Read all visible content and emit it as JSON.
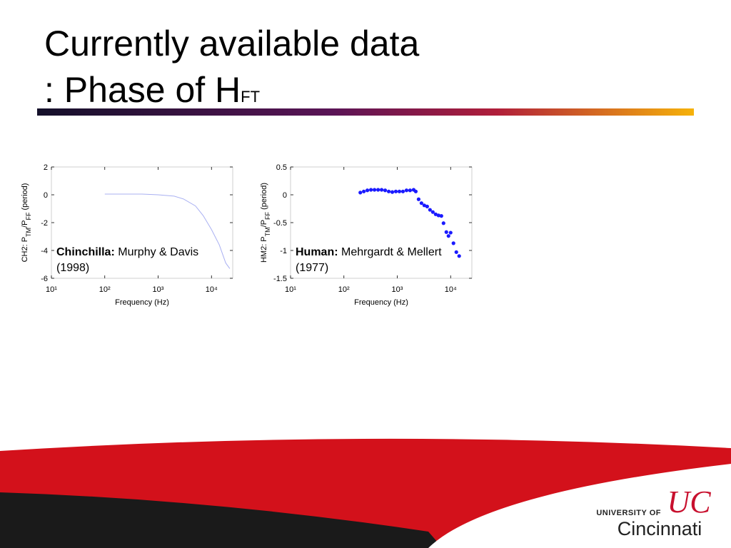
{
  "slide": {
    "title_line1": "Currently available data",
    "title_line2": ": Phase of H",
    "title_subscript": "FT"
  },
  "chart_data": [
    {
      "type": "line",
      "xlabel": "Frequency (Hz)",
      "ylabel": [
        "CH2: P",
        "TM",
        "/P",
        "FF",
        " (period)"
      ],
      "annotation_bold": "Chinchilla:",
      "annotation": "Murphy & Davis (1998)",
      "xscale": "log",
      "xlim": [
        10,
        25000
      ],
      "xticks": [
        {
          "value": 10,
          "label": "10¹"
        },
        {
          "value": 100,
          "label": "10²"
        },
        {
          "value": 1000,
          "label": "10³"
        },
        {
          "value": 10000,
          "label": "10⁴"
        }
      ],
      "ylim": [
        -6,
        2
      ],
      "yticks": [
        -6,
        -4,
        -2,
        0,
        2
      ],
      "series": [
        {
          "color": "#a9b0f2",
          "x": [
            100,
            200,
            500,
            1000,
            2000,
            3000,
            5000,
            7000,
            10000,
            14000,
            18500,
            22000
          ],
          "values": [
            0.05,
            0.05,
            0.05,
            0.0,
            -0.1,
            -0.3,
            -0.8,
            -1.5,
            -2.5,
            -3.6,
            -4.9,
            -5.3
          ]
        }
      ]
    },
    {
      "type": "scatter",
      "xlabel": "Frequency (Hz)",
      "ylabel": [
        "HM2: P",
        "TM",
        "/P",
        "FF",
        " (period)"
      ],
      "annotation_bold": "Human:",
      "annotation": "Mehrgardt & Mellert (1977)",
      "xscale": "log",
      "xlim": [
        10,
        25000
      ],
      "xticks": [
        {
          "value": 10,
          "label": "10¹"
        },
        {
          "value": 100,
          "label": "10²"
        },
        {
          "value": 1000,
          "label": "10³"
        },
        {
          "value": 10000,
          "label": "10⁴"
        }
      ],
      "ylim": [
        -1.5,
        0.5
      ],
      "yticks": [
        -1.5,
        -1,
        -0.5,
        0,
        0.5
      ],
      "series": [
        {
          "color": "#1a1aff",
          "x": [
            203,
            236,
            275,
            321,
            374,
            437,
            509,
            593,
            692,
            807,
            940,
            1096,
            1278,
            1490,
            1738,
            2026,
            2223,
            2512,
            2840,
            3211,
            3631,
            4105,
            4642,
            5248,
            5934,
            6710,
            7356,
            8318,
            9120,
            10000,
            11300,
            12790,
            14450
          ],
          "values": [
            0.04,
            0.06,
            0.08,
            0.09,
            0.09,
            0.09,
            0.09,
            0.08,
            0.06,
            0.05,
            0.06,
            0.06,
            0.06,
            0.08,
            0.08,
            0.09,
            0.06,
            -0.08,
            -0.15,
            -0.19,
            -0.21,
            -0.27,
            -0.31,
            -0.35,
            -0.37,
            -0.38,
            -0.51,
            -0.67,
            -0.74,
            -0.68,
            -0.87,
            -1.03,
            -1.1
          ]
        }
      ]
    }
  ],
  "footer": {
    "university": "UNIVERSITY OF",
    "name": "Cincinnati",
    "logo": "UC"
  }
}
